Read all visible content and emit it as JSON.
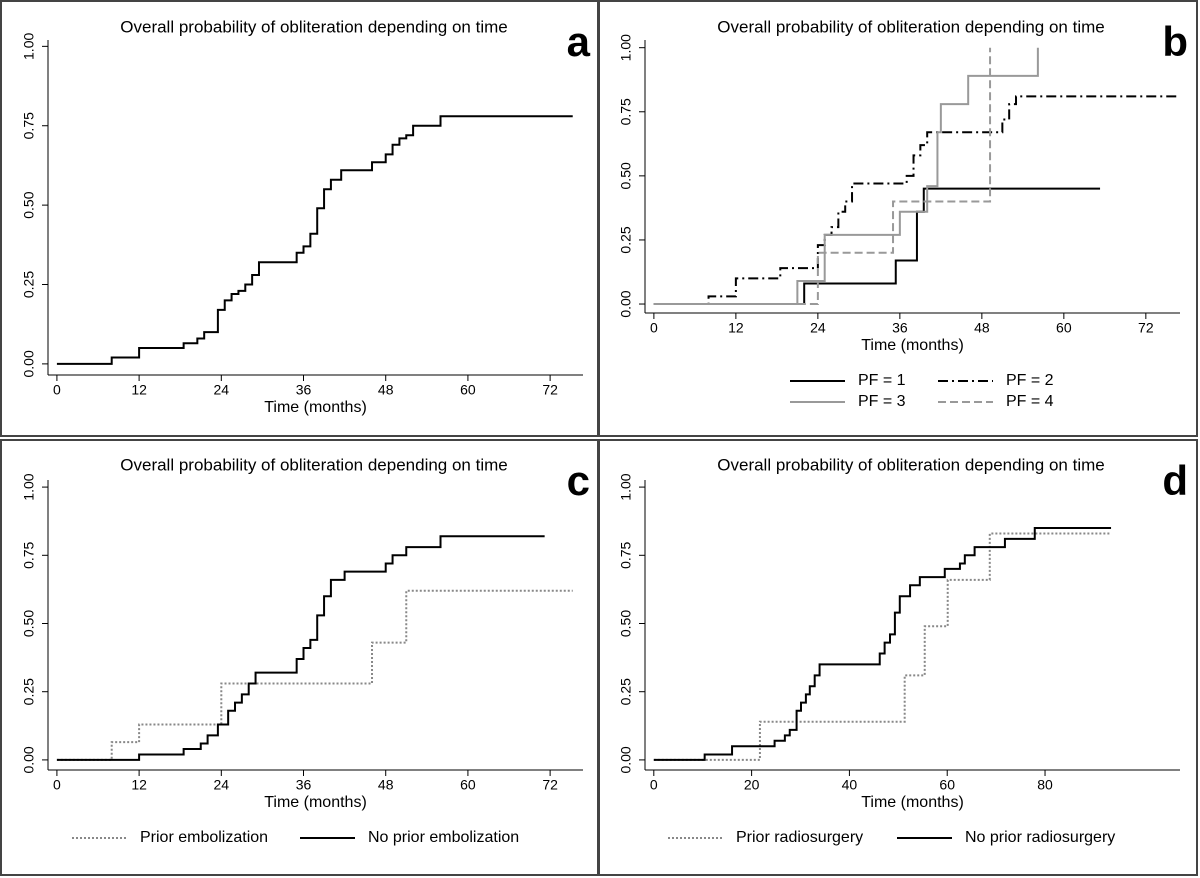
{
  "chart_data": [
    {
      "type": "line",
      "panel_label": "a",
      "title": "Overall probability of obliteration depending on time",
      "x_label": "Time (months)",
      "xlim": [
        -1.3,
        76.8
      ],
      "ylim": [
        -0.035,
        1.02
      ],
      "xticks": [
        0,
        12,
        24,
        36,
        48,
        60,
        72
      ],
      "yticks": [
        {
          "value": 0,
          "label": "0.00"
        },
        {
          "value": 0.25,
          "label": "0.25"
        },
        {
          "value": 0.5,
          "label": "0.50"
        },
        {
          "value": 0.75,
          "label": "0.75"
        },
        {
          "value": 1,
          "label": "1.00"
        }
      ],
      "series": [
        {
          "color": "#000000",
          "line_style": "solid",
          "x": [
            0,
            8,
            12,
            18.5,
            20.5,
            21.5,
            23.5,
            24.5,
            25.5,
            26.5,
            27.5,
            28.5,
            29.5,
            35,
            36,
            37,
            38,
            39,
            40,
            41.5,
            46,
            48,
            49,
            50,
            51,
            52,
            56,
            75.3
          ],
          "values": [
            0,
            0.02,
            0.05,
            0.065,
            0.08,
            0.1,
            0.17,
            0.2,
            0.22,
            0.23,
            0.25,
            0.28,
            0.32,
            0.35,
            0.37,
            0.41,
            0.49,
            0.55,
            0.58,
            0.61,
            0.635,
            0.66,
            0.69,
            0.71,
            0.72,
            0.75,
            0.78,
            0.78
          ]
        }
      ]
    },
    {
      "type": "line",
      "panel_label": "b",
      "title": "Overall probability of obliteration depending on time",
      "x_label": "Time (months)",
      "xlim": [
        -1.3,
        77
      ],
      "ylim": [
        -0.035,
        1.03
      ],
      "xticks": [
        0,
        12,
        24,
        36,
        48,
        60,
        72
      ],
      "yticks": [
        {
          "value": 0,
          "label": "0.00"
        },
        {
          "value": 0.25,
          "label": "0.25"
        },
        {
          "value": 0.5,
          "label": "0.50"
        },
        {
          "value": 0.75,
          "label": "0.75"
        },
        {
          "value": 1,
          "label": "1.00"
        }
      ],
      "series": [
        {
          "name": "PF = 1",
          "color": "#000000",
          "line_style": "solid",
          "x": [
            0,
            22,
            35.4,
            38.5,
            39.5,
            65.3
          ],
          "values": [
            0,
            0.08,
            0.17,
            0.36,
            0.45,
            0.45
          ]
        },
        {
          "name": "PF = 2",
          "color": "#000000",
          "line_style": "dashdot",
          "x": [
            0,
            8,
            12,
            18.5,
            24,
            25,
            26,
            27,
            28,
            29,
            37,
            38,
            39,
            40,
            51,
            52,
            53,
            76.5
          ],
          "values": [
            0,
            0.03,
            0.1,
            0.14,
            0.23,
            0.27,
            0.3,
            0.36,
            0.4,
            0.47,
            0.5,
            0.58,
            0.62,
            0.67,
            0.72,
            0.78,
            0.81,
            0.81
          ]
        },
        {
          "name": "PF = 3",
          "color": "#999999",
          "line_style": "solid",
          "x": [
            0,
            21,
            25,
            36,
            40,
            41.5,
            42,
            46,
            56.2
          ],
          "values": [
            0,
            0.09,
            0.27,
            0.36,
            0.46,
            0.67,
            0.78,
            0.89,
            1
          ]
        },
        {
          "name": "PF = 4",
          "color": "#999999",
          "line_style": "dashed",
          "x": [
            0,
            24,
            35,
            49.2
          ],
          "values": [
            0,
            0.2,
            0.4,
            1
          ]
        }
      ]
    },
    {
      "type": "line",
      "panel_label": "c",
      "title": "Overall probability of obliteration depending on time",
      "x_label": "Time (months)",
      "xlim": [
        -1.3,
        76.8
      ],
      "ylim": [
        -0.037,
        1.026
      ],
      "xticks": [
        0,
        12,
        24,
        36,
        48,
        60,
        72
      ],
      "yticks": [
        {
          "value": 0,
          "label": "0.00"
        },
        {
          "value": 0.25,
          "label": "0.25"
        },
        {
          "value": 0.5,
          "label": "0.50"
        },
        {
          "value": 0.75,
          "label": "0.75"
        },
        {
          "value": 1,
          "label": "1.00"
        }
      ],
      "series": [
        {
          "name": "Prior embolization",
          "color": "#888888",
          "line_style": "dotted",
          "x": [
            0,
            8,
            12,
            24,
            46,
            51,
            75.3
          ],
          "values": [
            0,
            0.065,
            0.13,
            0.28,
            0.43,
            0.62,
            0.62
          ]
        },
        {
          "name": "No prior embolization",
          "color": "#000000",
          "line_style": "solid",
          "x": [
            0,
            12,
            18.5,
            21,
            22,
            23.5,
            25,
            26,
            27,
            28,
            29,
            35,
            36,
            37,
            38,
            39,
            40,
            42,
            48,
            49,
            51,
            56,
            71.2
          ],
          "values": [
            0,
            0.02,
            0.04,
            0.06,
            0.09,
            0.13,
            0.18,
            0.21,
            0.24,
            0.28,
            0.32,
            0.37,
            0.41,
            0.44,
            0.53,
            0.6,
            0.66,
            0.69,
            0.72,
            0.75,
            0.78,
            0.82,
            0.82
          ]
        }
      ]
    },
    {
      "type": "line",
      "panel_label": "d",
      "title": "Overall probability of obliteration depending on time",
      "x_label": "Time (months)",
      "xlim": [
        -1.8,
        107.6
      ],
      "ylim": [
        -0.037,
        1.026
      ],
      "xticks": [
        0,
        20,
        40,
        60,
        80
      ],
      "yticks": [
        {
          "value": 0,
          "label": "0.00"
        },
        {
          "value": 0.25,
          "label": "0.25"
        },
        {
          "value": 0.5,
          "label": "0.50"
        },
        {
          "value": 0.75,
          "label": "0.75"
        },
        {
          "value": 1,
          "label": "1.00"
        }
      ],
      "series": [
        {
          "name": "Prior radiosurgery",
          "color": "#888888",
          "line_style": "dotted",
          "x": [
            0,
            21.7,
            51.3,
            55.4,
            60.1,
            68.7,
            93.5
          ],
          "values": [
            0,
            0.14,
            0.31,
            0.49,
            0.66,
            0.83,
            0.83
          ]
        },
        {
          "name": "No prior radiosurgery",
          "color": "#000000",
          "line_style": "solid",
          "x": [
            0,
            10.4,
            16,
            24.7,
            26.8,
            27.8,
            29.2,
            30.1,
            31.1,
            31.9,
            32.9,
            33.9,
            46.2,
            47.2,
            48.3,
            49.3,
            50.3,
            52.4,
            54.4,
            59.5,
            62.6,
            63.6,
            65.6,
            71.8,
            77.9,
            93.5
          ],
          "values": [
            0,
            0.02,
            0.05,
            0.07,
            0.09,
            0.11,
            0.18,
            0.21,
            0.24,
            0.27,
            0.31,
            0.35,
            0.39,
            0.43,
            0.46,
            0.54,
            0.6,
            0.64,
            0.67,
            0.7,
            0.72,
            0.75,
            0.78,
            0.81,
            0.85,
            0.85
          ]
        }
      ]
    }
  ]
}
